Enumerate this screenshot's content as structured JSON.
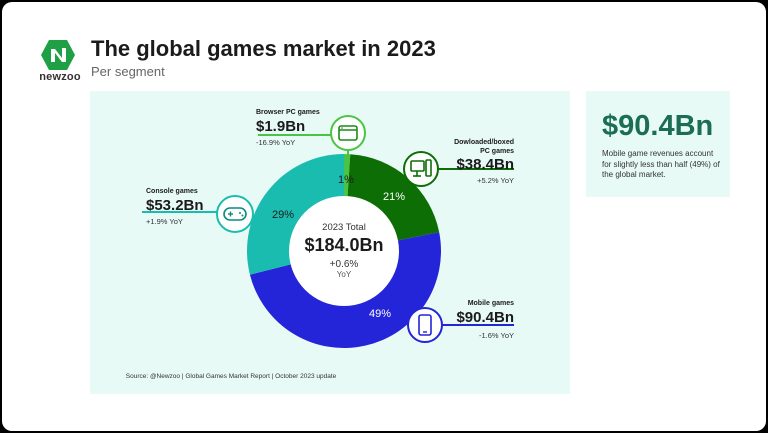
{
  "header": {
    "brand": "newzoo",
    "title": "The global games market in 2023",
    "subtitle": "Per segment"
  },
  "chart_data": {
    "type": "pie",
    "donut": true,
    "center": {
      "line1": "2023 Total",
      "total": "$184.0Bn",
      "change": "+0.6%",
      "change_label": "YoY"
    },
    "series": [
      {
        "name": "Browser PC games",
        "value": 1.9,
        "value_label": "$1.9Bn",
        "share": 1,
        "share_label": "1%",
        "yoy": "-16.9% YoY",
        "color": "#49c443",
        "icon": "browser-window-icon"
      },
      {
        "name": "Dowloaded/boxed PC games",
        "value": 38.4,
        "value_label": "$38.4Bn",
        "share": 21,
        "share_label": "21%",
        "yoy": "+5.2% YoY",
        "color": "#0d6e06",
        "icon": "desktop-computer-icon"
      },
      {
        "name": "Mobile games",
        "value": 90.4,
        "value_label": "$90.4Bn",
        "share": 49,
        "share_label": "49%",
        "yoy": "-1.6% YoY",
        "color": "#2424d8",
        "icon": "smartphone-icon"
      },
      {
        "name": "Console games",
        "value": 53.2,
        "value_label": "$53.2Bn",
        "share": 29,
        "share_label": "29%",
        "yoy": "+1.9% YoY",
        "color": "#1bbcb0",
        "icon": "gamepad-icon"
      }
    ]
  },
  "side": {
    "value": "$90.4Bn",
    "note": "Mobile game revenues account for slightly less than half (49%) of the global market."
  },
  "source": "Source: @Newzoo | Global Games Market Report | October 2023 update",
  "colors": {
    "accent_green": "#1b6e52",
    "panel_bg": "#e8faf6",
    "brand_green": "#1fa045"
  }
}
